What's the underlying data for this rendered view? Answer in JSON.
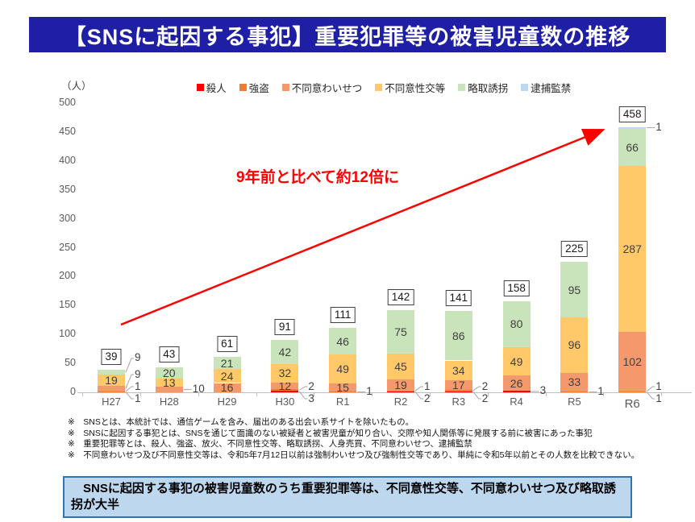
{
  "header": {
    "title": "【SNSに起因する事犯】重要犯罪等の被害児童数の推移",
    "bg_color": "#1F1FA6"
  },
  "chart": {
    "unit_label": "（人）",
    "annotation": "9年前と比べて約12倍に",
    "annotation_color": "#FF0000",
    "arrow_color": "#FF0000"
  },
  "chart_data": {
    "type": "bar",
    "stacked": true,
    "title": "【SNSに起因する事犯】重要犯罪等の被害児童数の推移",
    "categories": [
      "H27",
      "H28",
      "H29",
      "H30",
      "R1",
      "R2",
      "R3",
      "R4",
      "R5",
      "R6"
    ],
    "series": [
      {
        "name": "殺人",
        "color": "#FF0000",
        "values": [
          1,
          0,
          0,
          3,
          0,
          2,
          2,
          3,
          0,
          1
        ]
      },
      {
        "name": "強盗",
        "color": "#ED7D31",
        "values": [
          1,
          0,
          0,
          2,
          1,
          1,
          2,
          0,
          1,
          1
        ]
      },
      {
        "name": "不同意わいせつ",
        "color": "#F4996C",
        "values": [
          9,
          10,
          16,
          12,
          15,
          19,
          17,
          26,
          33,
          102
        ]
      },
      {
        "name": "不同意性交等",
        "color": "#FFC869",
        "values": [
          19,
          13,
          24,
          32,
          49,
          45,
          34,
          49,
          96,
          287
        ]
      },
      {
        "name": "略取誘拐",
        "color": "#C9E3BB",
        "values": [
          9,
          20,
          21,
          42,
          46,
          75,
          86,
          80,
          95,
          66
        ]
      },
      {
        "name": "逮捕監禁",
        "color": "#BDD7EE",
        "values": [
          0,
          0,
          0,
          0,
          0,
          0,
          0,
          0,
          0,
          1
        ]
      }
    ],
    "totals": [
      39,
      43,
      61,
      91,
      111,
      142,
      141,
      158,
      225,
      458
    ],
    "ylabel": "（人）",
    "xlabel": "",
    "ylim": [
      0,
      500
    ],
    "ytick_step": 50,
    "grid": false,
    "legend_position": "top",
    "annotations": [
      "9年前と比べて約12倍に"
    ]
  },
  "footnotes": [
    "※　SNSとは、本統計では、通信ゲームを含み、届出のある出会い系サイトを除いたもの。",
    "※　SNSに起因する事犯とは、SNSを通じて面識のない被疑者と被害児童が知り合い、交際や知人関係等に発展する前に被害にあった事犯",
    "※　重要犯罪等とは、殺人、強盗、放火、不同意性交等、略取誘拐、人身売買、不同意わいせつ、逮捕監禁",
    "※　不同意わいせつ及び不同意性交等は、令和5年7月12日以前は強制わいせつ及び強制性交等であり、単純に令和5年以前とその人数を比較できない。"
  ],
  "summary_box": {
    "text": "　SNSに起因する事犯の被害児童数のうち重要犯罪等は、不同意性交等、不同意わいせつ及び略取誘拐が大半",
    "bg": "#BDD7EE",
    "border": "#2E75B6"
  }
}
